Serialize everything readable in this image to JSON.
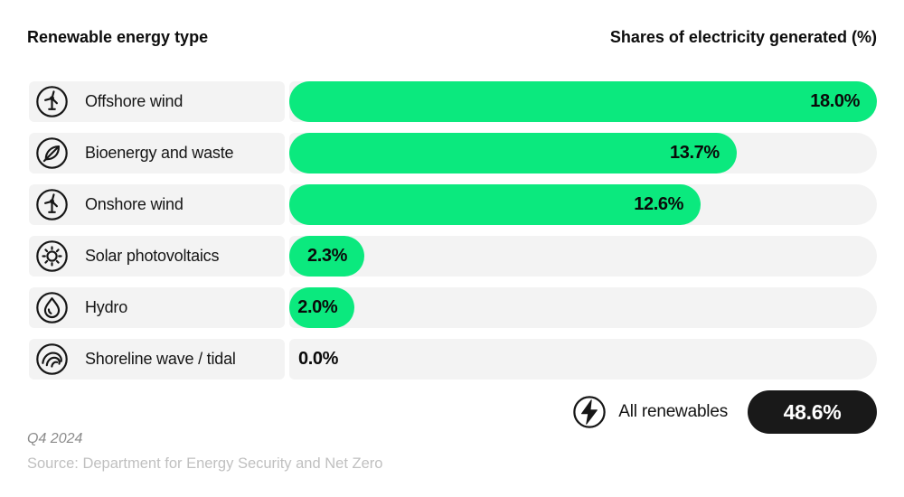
{
  "header": {
    "left": "Renewable energy type",
    "right": "Shares of electricity generated (%)"
  },
  "chart_data": {
    "type": "bar",
    "orientation": "horizontal",
    "title": "",
    "xlabel": "Shares of electricity generated (%)",
    "ylabel": "Renewable energy type",
    "xlim": [
      0,
      18
    ],
    "grid": false,
    "categories": [
      "Offshore wind",
      "Bioenergy and waste",
      "Onshore wind",
      "Solar photovoltaics",
      "Hydro",
      "Shoreline wave / tidal"
    ],
    "values": [
      18.0,
      13.7,
      12.6,
      2.3,
      2.0,
      0.0
    ],
    "value_labels": [
      "18.0%",
      "13.7%",
      "12.6%",
      "2.3%",
      "2.0%",
      "0.0%"
    ],
    "icons": [
      "wind-turbine",
      "leaf",
      "wind-turbine",
      "sun",
      "droplet",
      "wave"
    ],
    "total": {
      "label": "All renewables",
      "value": 48.6,
      "value_label": "48.6%",
      "icon": "bolt"
    }
  },
  "footer": {
    "period": "Q4 2024",
    "source": "Source: Department for Energy Security and Net Zero"
  },
  "colors": {
    "bar": "#0be97e",
    "track": "#f3f3f3",
    "total_pill_bg": "#191919",
    "total_pill_text": "#ffffff"
  }
}
